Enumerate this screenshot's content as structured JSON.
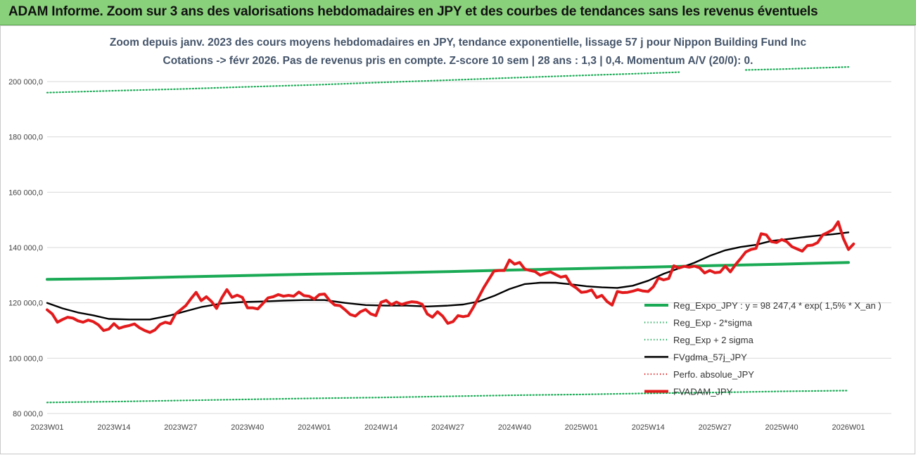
{
  "banner": {
    "text": "ADAM Informe. Zoom sur 3 ans des valorisations hebdomadaires en JPY et des courbes de tendances sans les revenus éventuels"
  },
  "chart": {
    "title_line1": "Zoom depuis janv. 2023 des cours moyens hebdomadaires en JPY, tendance exponentielle, lissage 57 j pour Nippon Building Fund Inc",
    "title_line2": "Cotations -> févr 2026.  Pas de revenus pris en compte. Z-score 10 sem | 28 ans : 1,3 | 0,4. Momentum A/V (20/0): 0."
  },
  "colors": {
    "banner": "#8ad17c",
    "reg_expo": "#1aaa55",
    "sigma": "#1aaa55",
    "fvgdma": "#000000",
    "perfo": "#e31a1c",
    "fvadam": "#e31a1c",
    "title": "#44546a"
  },
  "chart_data": {
    "type": "line",
    "x_tick_labels": [
      "2023W01",
      "2023W14",
      "2023W27",
      "2023W40",
      "2024W01",
      "2024W14",
      "2024W27",
      "2024W40",
      "2025W01",
      "2025W14",
      "2025W27",
      "2025W40",
      "2026W01"
    ],
    "y_tick_labels": [
      "80 000,0",
      "100 000,0",
      "120 000,0",
      "140 000,0",
      "160 000,0",
      "180 000,0",
      "200 000,0"
    ],
    "ylim": [
      80000,
      208000
    ],
    "x_range_weeks": [
      0,
      158
    ],
    "legend_position": "right",
    "grid": "horizontal",
    "series": [
      {
        "name": "Reg_Expo_JPY : y = 98 247,4 * exp( 1,5% *  X_an )",
        "style": "solid-thick",
        "color": "#1aaa55",
        "points": [
          [
            0,
            128500
          ],
          [
            13,
            128800
          ],
          [
            26,
            129400
          ],
          [
            39,
            129900
          ],
          [
            52,
            130400
          ],
          [
            65,
            130800
          ],
          [
            78,
            131300
          ],
          [
            91,
            131900
          ],
          [
            104,
            132400
          ],
          [
            117,
            132900
          ],
          [
            130,
            133500
          ],
          [
            143,
            134000
          ],
          [
            156,
            134600
          ]
        ]
      },
      {
        "name": "Reg_Exp - 2*sigma",
        "style": "dotted",
        "color": "#1aaa55",
        "points": [
          [
            0,
            84000
          ],
          [
            13,
            84300
          ],
          [
            26,
            84700
          ],
          [
            39,
            85100
          ],
          [
            52,
            85500
          ],
          [
            65,
            85800
          ],
          [
            78,
            86200
          ],
          [
            91,
            86600
          ],
          [
            104,
            86900
          ],
          [
            117,
            87300
          ],
          [
            130,
            87600
          ],
          [
            143,
            88000
          ],
          [
            156,
            88300
          ]
        ]
      },
      {
        "name": "Reg_Exp + 2 sigma",
        "style": "dotted",
        "color": "#1aaa55",
        "points": [
          [
            0,
            196000
          ],
          [
            13,
            196700
          ],
          [
            26,
            197300
          ],
          [
            39,
            198100
          ],
          [
            52,
            198800
          ],
          [
            65,
            199700
          ],
          [
            78,
            200500
          ],
          [
            91,
            201400
          ],
          [
            104,
            202200
          ],
          [
            117,
            203000
          ],
          [
            123,
            203400
          ],
          [
            136,
            204200
          ],
          [
            143,
            204500
          ],
          [
            156,
            205300
          ]
        ]
      },
      {
        "name": "FVgdma_57j_JPY",
        "style": "solid",
        "color": "#000000",
        "points": [
          [
            0,
            120000
          ],
          [
            3,
            118000
          ],
          [
            6,
            116500
          ],
          [
            9,
            115500
          ],
          [
            12,
            114200
          ],
          [
            16,
            114000
          ],
          [
            20,
            114000
          ],
          [
            24,
            115500
          ],
          [
            27,
            117000
          ],
          [
            30,
            118500
          ],
          [
            34,
            119800
          ],
          [
            38,
            120300
          ],
          [
            42,
            120500
          ],
          [
            46,
            120800
          ],
          [
            50,
            121000
          ],
          [
            54,
            121000
          ],
          [
            58,
            120000
          ],
          [
            62,
            119200
          ],
          [
            66,
            119000
          ],
          [
            70,
            119000
          ],
          [
            74,
            118700
          ],
          [
            78,
            119000
          ],
          [
            81,
            119400
          ],
          [
            84,
            120500
          ],
          [
            87,
            122500
          ],
          [
            90,
            125000
          ],
          [
            93,
            126800
          ],
          [
            96,
            127300
          ],
          [
            99,
            127300
          ],
          [
            102,
            126700
          ],
          [
            105,
            126000
          ],
          [
            108,
            125600
          ],
          [
            111,
            125400
          ],
          [
            114,
            126200
          ],
          [
            117,
            128000
          ],
          [
            120,
            130500
          ],
          [
            123,
            132500
          ],
          [
            126,
            134500
          ],
          [
            129,
            137000
          ],
          [
            132,
            139000
          ],
          [
            135,
            140200
          ],
          [
            138,
            141000
          ],
          [
            141,
            142400
          ],
          [
            144,
            143000
          ],
          [
            147,
            143700
          ],
          [
            150,
            144300
          ],
          [
            153,
            144800
          ],
          [
            156,
            145500
          ]
        ]
      },
      {
        "name": "Perfo. absolue_JPY",
        "style": "dotted",
        "color": "#e31a1c",
        "points": []
      },
      {
        "name": "FVADAM_JPY",
        "style": "solid-thick",
        "color": "#e31a1c",
        "points": [
          [
            0,
            117500
          ],
          [
            1,
            116000
          ],
          [
            2,
            113000
          ],
          [
            3,
            114000
          ],
          [
            4,
            114800
          ],
          [
            5,
            114500
          ],
          [
            6,
            113500
          ],
          [
            7,
            113000
          ],
          [
            8,
            113800
          ],
          [
            9,
            113200
          ],
          [
            10,
            112000
          ],
          [
            11,
            110000
          ],
          [
            12,
            110500
          ],
          [
            13,
            112500
          ],
          [
            14,
            110800
          ],
          [
            15,
            111400
          ],
          [
            16,
            111800
          ],
          [
            17,
            112400
          ],
          [
            18,
            111000
          ],
          [
            19,
            110000
          ],
          [
            20,
            109300
          ],
          [
            21,
            110200
          ],
          [
            22,
            112200
          ],
          [
            23,
            113000
          ],
          [
            24,
            112500
          ],
          [
            25,
            116000
          ],
          [
            26,
            117500
          ],
          [
            27,
            119000
          ],
          [
            28,
            121500
          ],
          [
            29,
            123800
          ],
          [
            30,
            120800
          ],
          [
            31,
            122200
          ],
          [
            32,
            120500
          ],
          [
            33,
            118000
          ],
          [
            34,
            121800
          ],
          [
            35,
            124800
          ],
          [
            36,
            122000
          ],
          [
            37,
            122800
          ],
          [
            38,
            122000
          ],
          [
            39,
            118200
          ],
          [
            40,
            118200
          ],
          [
            41,
            117800
          ],
          [
            42,
            119800
          ],
          [
            43,
            121800
          ],
          [
            44,
            122200
          ],
          [
            45,
            123000
          ],
          [
            46,
            122400
          ],
          [
            47,
            122700
          ],
          [
            48,
            122400
          ],
          [
            49,
            123900
          ],
          [
            50,
            122600
          ],
          [
            51,
            122400
          ],
          [
            52,
            121400
          ],
          [
            53,
            123000
          ],
          [
            54,
            123200
          ],
          [
            55,
            120800
          ],
          [
            56,
            119200
          ],
          [
            57,
            119000
          ],
          [
            58,
            117500
          ],
          [
            59,
            115800
          ],
          [
            60,
            115200
          ],
          [
            61,
            116800
          ],
          [
            62,
            117600
          ],
          [
            63,
            116000
          ],
          [
            64,
            115400
          ],
          [
            65,
            120200
          ],
          [
            66,
            120900
          ],
          [
            67,
            119300
          ],
          [
            68,
            120300
          ],
          [
            69,
            119400
          ],
          [
            70,
            120000
          ],
          [
            71,
            120400
          ],
          [
            72,
            120200
          ],
          [
            73,
            119500
          ],
          [
            74,
            116000
          ],
          [
            75,
            114800
          ],
          [
            76,
            116800
          ],
          [
            77,
            115200
          ],
          [
            78,
            112600
          ],
          [
            79,
            113200
          ],
          [
            80,
            115400
          ],
          [
            81,
            115000
          ],
          [
            82,
            115400
          ],
          [
            83,
            118500
          ],
          [
            84,
            122000
          ],
          [
            85,
            125500
          ],
          [
            86,
            128500
          ],
          [
            87,
            131500
          ],
          [
            88,
            131700
          ],
          [
            89,
            131700
          ],
          [
            90,
            135500
          ],
          [
            91,
            134000
          ],
          [
            92,
            134600
          ],
          [
            93,
            132200
          ],
          [
            94,
            131700
          ],
          [
            95,
            131300
          ],
          [
            96,
            130000
          ],
          [
            97,
            130700
          ],
          [
            98,
            131200
          ],
          [
            99,
            130200
          ],
          [
            100,
            129300
          ],
          [
            101,
            129700
          ],
          [
            102,
            126600
          ],
          [
            103,
            125400
          ],
          [
            104,
            123800
          ],
          [
            105,
            124000
          ],
          [
            106,
            124700
          ],
          [
            107,
            121900
          ],
          [
            108,
            122700
          ],
          [
            109,
            120500
          ],
          [
            110,
            119200
          ],
          [
            111,
            124100
          ],
          [
            112,
            123700
          ],
          [
            113,
            123800
          ],
          [
            114,
            124200
          ],
          [
            115,
            124800
          ],
          [
            116,
            124300
          ],
          [
            117,
            124100
          ],
          [
            118,
            125800
          ],
          [
            119,
            129000
          ],
          [
            120,
            128300
          ],
          [
            121,
            128800
          ],
          [
            122,
            133400
          ],
          [
            123,
            132600
          ],
          [
            124,
            133200
          ],
          [
            125,
            132900
          ],
          [
            126,
            133300
          ],
          [
            127,
            132700
          ],
          [
            128,
            130800
          ],
          [
            129,
            131700
          ],
          [
            130,
            130900
          ],
          [
            131,
            131100
          ],
          [
            132,
            133300
          ],
          [
            133,
            131200
          ],
          [
            134,
            133800
          ],
          [
            135,
            136000
          ],
          [
            136,
            138400
          ],
          [
            137,
            139300
          ],
          [
            138,
            139700
          ],
          [
            139,
            145000
          ],
          [
            140,
            144600
          ],
          [
            141,
            142100
          ],
          [
            142,
            141800
          ],
          [
            143,
            142900
          ],
          [
            144,
            142100
          ],
          [
            145,
            140300
          ],
          [
            146,
            139500
          ],
          [
            147,
            138700
          ],
          [
            148,
            140700
          ],
          [
            149,
            140900
          ],
          [
            150,
            141800
          ],
          [
            151,
            144600
          ],
          [
            152,
            145500
          ],
          [
            153,
            146500
          ],
          [
            154,
            149300
          ],
          [
            155,
            143300
          ],
          [
            156,
            139300
          ],
          [
            157,
            141300
          ]
        ]
      }
    ]
  }
}
